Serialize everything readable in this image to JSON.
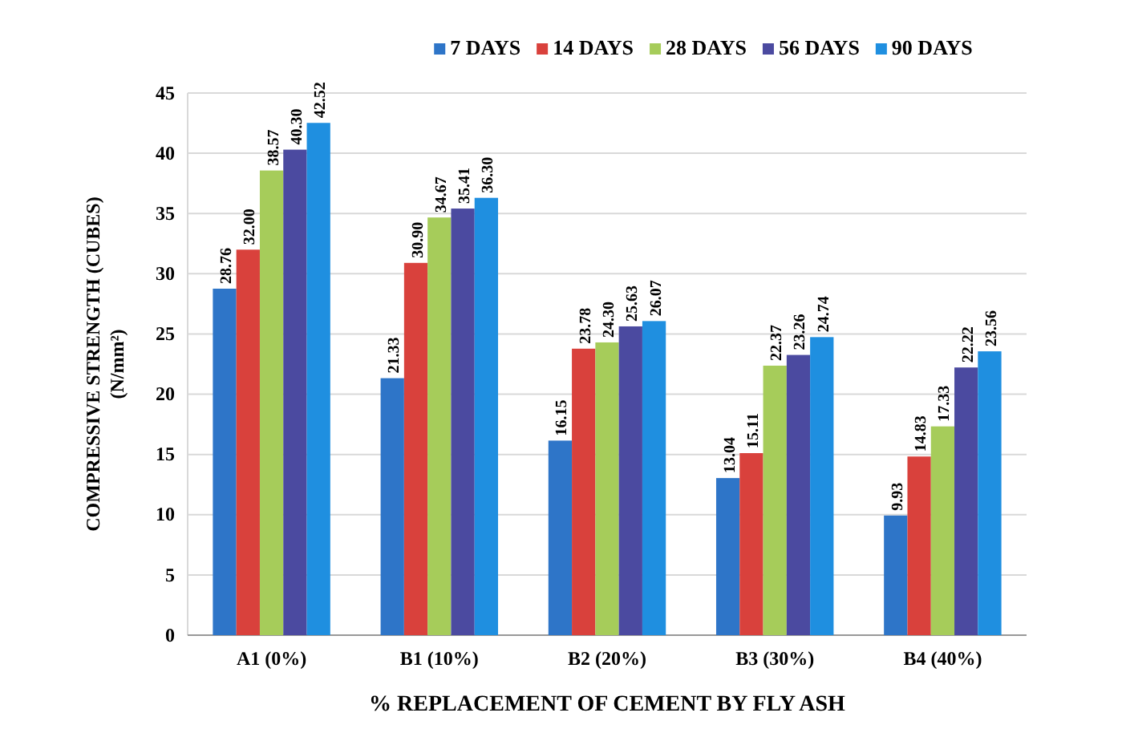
{
  "chart_data": {
    "type": "bar",
    "xlabel": "% REPLACEMENT OF CEMENT BY FLY ASH",
    "ylabel": "COMPRESSIVE STRENGTH (CUBES) (N/mm²)",
    "categories": [
      "A1 (0%)",
      "B1 (10%)",
      "B2 (20%)",
      "B3 (30%)",
      "B4 (40%)"
    ],
    "series": [
      {
        "name": "7 DAYS",
        "color": "#2e75c8",
        "values": [
          28.76,
          21.33,
          16.15,
          13.04,
          9.93
        ],
        "value_labels": [
          "28.76",
          "21.33",
          "16.15",
          "13.04",
          "9.93"
        ]
      },
      {
        "name": "14 DAYS",
        "color": "#d9413c",
        "values": [
          32.0,
          30.9,
          23.78,
          15.11,
          14.83
        ],
        "value_labels": [
          "32.00",
          "30.90",
          "23.78",
          "15.11",
          "14.83"
        ]
      },
      {
        "name": "28 DAYS",
        "color": "#a6cc5a",
        "values": [
          38.57,
          34.67,
          24.3,
          22.37,
          17.33
        ],
        "value_labels": [
          "38.57",
          "34.67",
          "24.30",
          "22.37",
          "17.33"
        ]
      },
      {
        "name": "56 DAYS",
        "color": "#4b4aa0",
        "values": [
          40.3,
          35.41,
          25.63,
          23.26,
          22.22
        ],
        "value_labels": [
          "40.30",
          "35.41",
          "25.63",
          "23.26",
          "22.22"
        ]
      },
      {
        "name": "90 DAYS",
        "color": "#1f8fe0",
        "values": [
          42.52,
          36.3,
          26.07,
          24.74,
          23.56
        ],
        "value_labels": [
          "42.52",
          "36.30",
          "26.07",
          "24.74",
          "23.56"
        ]
      }
    ],
    "ylim": [
      0,
      45
    ],
    "yticks": [
      0,
      5,
      10,
      15,
      20,
      25,
      30,
      35,
      40,
      45
    ],
    "grid": "y",
    "legend": "top"
  }
}
